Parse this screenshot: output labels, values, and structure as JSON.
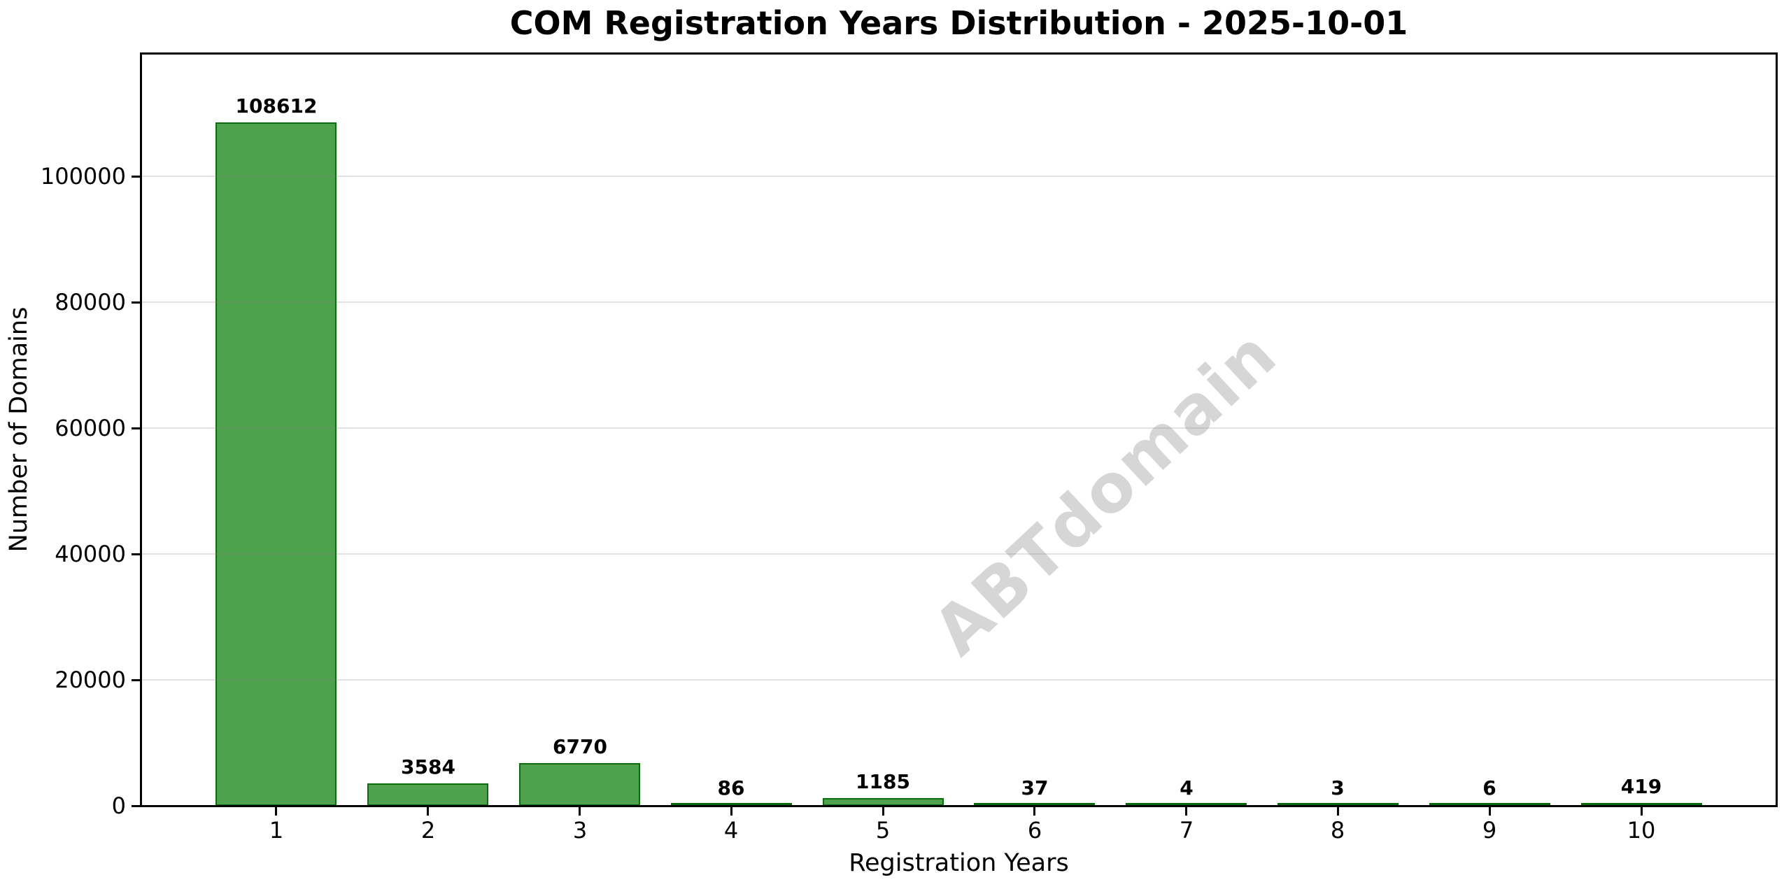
{
  "figure": {
    "watermark": "ABTdomain"
  },
  "chart_data": {
    "type": "bar",
    "title": "COM Registration Years Distribution - 2025-10-01",
    "xlabel": "Registration Years",
    "ylabel": "Number of Domains",
    "categories": [
      "1",
      "2",
      "3",
      "4",
      "5",
      "6",
      "7",
      "8",
      "9",
      "10"
    ],
    "values": [
      108612,
      3584,
      6770,
      86,
      1185,
      37,
      4,
      3,
      6,
      419
    ],
    "bar_value_labels": [
      "108612",
      "3584",
      "6770",
      "86",
      "1185",
      "37",
      "4",
      "3",
      "6",
      "419"
    ],
    "ytick_values": [
      0,
      20000,
      40000,
      60000,
      80000,
      100000
    ],
    "ytick_labels": [
      "0",
      "20000",
      "40000",
      "60000",
      "80000",
      "100000"
    ],
    "xlim": [
      0.11,
      10.89
    ],
    "ylim": [
      0,
      119473
    ],
    "bar_width_fraction": 0.8,
    "grid": "horizontal",
    "legend": "none",
    "watermark_text": "ABTdomain",
    "colors": {
      "bar_fill": "#4EA24E",
      "bar_edge": "#338333",
      "grid_line": "#DEDEDE",
      "watermark": "#D3D3D3",
      "axis_and_text": "#000000",
      "background": "#FFFFFF"
    }
  }
}
